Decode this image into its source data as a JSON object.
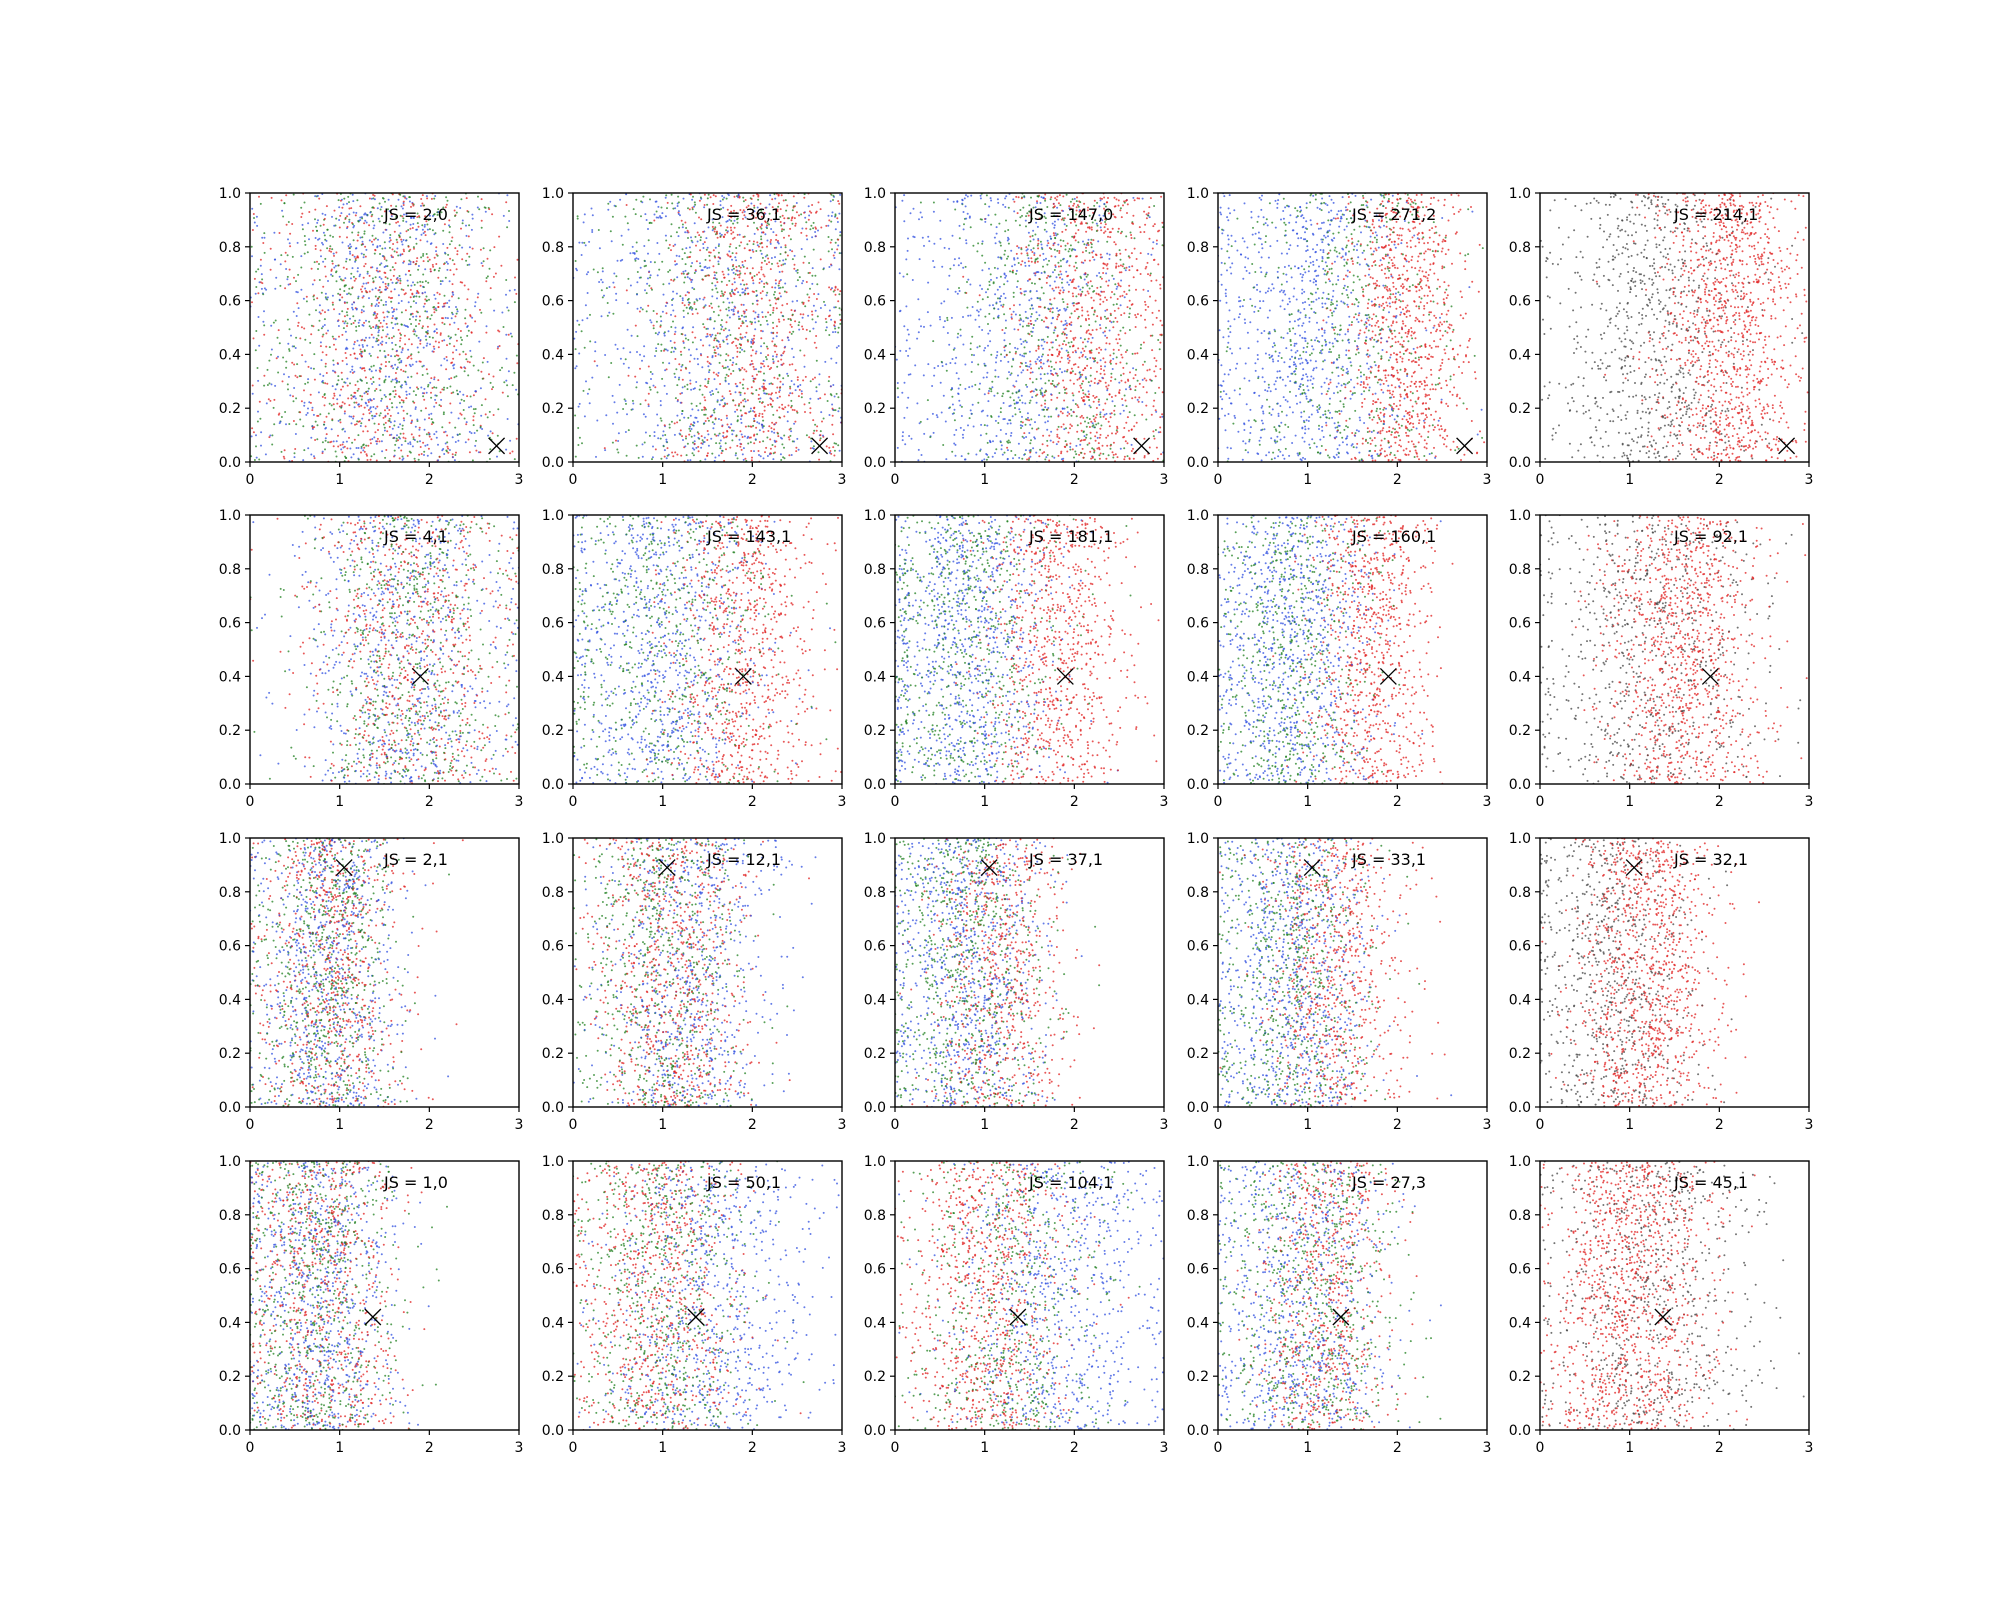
{
  "chart_data": {
    "type": "scatter",
    "layout": "grid",
    "rows": 4,
    "cols": 5,
    "xlim": [
      0,
      3
    ],
    "ylim": [
      0,
      1
    ],
    "x_ticks": [
      "0",
      "1",
      "2",
      "3"
    ],
    "y_ticks": [
      "0.0",
      "0.2",
      "0.4",
      "0.6",
      "0.8",
      "1.0"
    ],
    "grid": false,
    "legend": "none",
    "colors": {
      "blue": "#3050e0",
      "green": "#208020",
      "red": "#e02020",
      "gray": "#444444",
      "marker": "#000000"
    },
    "panels": [
      {
        "row": 0,
        "col": 0,
        "label": "JS = 2,0",
        "marker": [
          2.75,
          0.06
        ],
        "series": [
          {
            "color": "blue",
            "x_mean": 1.5,
            "x_sd": 0.7,
            "n": 700
          },
          {
            "color": "green",
            "x_mean": 1.5,
            "x_sd": 0.7,
            "n": 650
          },
          {
            "color": "red",
            "x_mean": 1.5,
            "x_sd": 0.7,
            "n": 700
          }
        ]
      },
      {
        "row": 0,
        "col": 1,
        "label": "JS = 36,1",
        "marker": [
          2.75,
          0.06
        ],
        "series": [
          {
            "color": "blue",
            "x_mean": 1.6,
            "x_sd": 0.8,
            "n": 700
          },
          {
            "color": "green",
            "x_mean": 1.7,
            "x_sd": 0.7,
            "n": 600
          },
          {
            "color": "red",
            "x_mean": 2.0,
            "x_sd": 0.5,
            "n": 750
          }
        ]
      },
      {
        "row": 0,
        "col": 2,
        "label": "JS = 147,0",
        "marker": [
          2.75,
          0.06
        ],
        "series": [
          {
            "color": "blue",
            "x_mean": 1.3,
            "x_sd": 0.7,
            "n": 700
          },
          {
            "color": "green",
            "x_mean": 1.7,
            "x_sd": 0.6,
            "n": 550
          },
          {
            "color": "red",
            "x_mean": 2.2,
            "x_sd": 0.45,
            "n": 800
          }
        ]
      },
      {
        "row": 0,
        "col": 3,
        "label": "JS = 271,2",
        "marker": [
          2.75,
          0.06
        ],
        "series": [
          {
            "color": "blue",
            "x_mean": 1.0,
            "x_sd": 0.6,
            "n": 800
          },
          {
            "color": "green",
            "x_mean": 1.4,
            "x_sd": 0.6,
            "n": 500
          },
          {
            "color": "red",
            "x_mean": 2.1,
            "x_sd": 0.35,
            "n": 900
          }
        ]
      },
      {
        "row": 0,
        "col": 4,
        "label": "JS = 214,1",
        "marker": [
          2.75,
          0.06
        ],
        "series": [
          {
            "color": "gray",
            "x_mean": 1.2,
            "x_sd": 0.55,
            "n": 800
          },
          {
            "color": "red",
            "x_mean": 2.1,
            "x_sd": 0.4,
            "n": 1100
          }
        ]
      },
      {
        "row": 1,
        "col": 0,
        "label": "JS = 4,1",
        "marker": [
          1.9,
          0.4
        ],
        "series": [
          {
            "color": "blue",
            "x_mean": 1.75,
            "x_sd": 0.6,
            "n": 700
          },
          {
            "color": "green",
            "x_mean": 1.75,
            "x_sd": 0.6,
            "n": 650
          },
          {
            "color": "red",
            "x_mean": 1.75,
            "x_sd": 0.6,
            "n": 700
          }
        ]
      },
      {
        "row": 1,
        "col": 1,
        "label": "JS = 143,1",
        "marker": [
          1.9,
          0.4
        ],
        "series": [
          {
            "color": "blue",
            "x_mean": 1.0,
            "x_sd": 0.6,
            "n": 800
          },
          {
            "color": "green",
            "x_mean": 1.0,
            "x_sd": 0.6,
            "n": 600
          },
          {
            "color": "red",
            "x_mean": 1.9,
            "x_sd": 0.4,
            "n": 800
          }
        ]
      },
      {
        "row": 1,
        "col": 2,
        "label": "JS = 181,1",
        "marker": [
          1.9,
          0.4
        ],
        "series": [
          {
            "color": "blue",
            "x_mean": 0.8,
            "x_sd": 0.5,
            "n": 850
          },
          {
            "color": "green",
            "x_mean": 0.8,
            "x_sd": 0.5,
            "n": 650
          },
          {
            "color": "red",
            "x_mean": 1.8,
            "x_sd": 0.4,
            "n": 800
          }
        ]
      },
      {
        "row": 1,
        "col": 3,
        "label": "JS = 160,1",
        "marker": [
          1.9,
          0.4
        ],
        "series": [
          {
            "color": "blue",
            "x_mean": 0.8,
            "x_sd": 0.45,
            "n": 850
          },
          {
            "color": "green",
            "x_mean": 0.8,
            "x_sd": 0.45,
            "n": 600
          },
          {
            "color": "red",
            "x_mean": 1.7,
            "x_sd": 0.35,
            "n": 800
          }
        ]
      },
      {
        "row": 1,
        "col": 4,
        "label": "JS = 92,1",
        "marker": [
          1.9,
          0.4
        ],
        "series": [
          {
            "color": "gray",
            "x_mean": 1.2,
            "x_sd": 0.65,
            "n": 700
          },
          {
            "color": "red",
            "x_mean": 1.6,
            "x_sd": 0.45,
            "n": 1000
          }
        ]
      },
      {
        "row": 2,
        "col": 0,
        "label": "JS = 2,1",
        "marker": [
          1.05,
          0.89
        ],
        "series": [
          {
            "color": "blue",
            "x_mean": 0.9,
            "x_sd": 0.4,
            "n": 750
          },
          {
            "color": "green",
            "x_mean": 0.9,
            "x_sd": 0.4,
            "n": 700
          },
          {
            "color": "red",
            "x_mean": 0.9,
            "x_sd": 0.4,
            "n": 700
          }
        ]
      },
      {
        "row": 2,
        "col": 1,
        "label": "JS = 12,1",
        "marker": [
          1.05,
          0.89
        ],
        "series": [
          {
            "color": "blue",
            "x_mean": 1.3,
            "x_sd": 0.5,
            "n": 700
          },
          {
            "color": "green",
            "x_mean": 1.0,
            "x_sd": 0.45,
            "n": 650
          },
          {
            "color": "red",
            "x_mean": 1.1,
            "x_sd": 0.45,
            "n": 750
          }
        ]
      },
      {
        "row": 2,
        "col": 2,
        "label": "JS = 37,1",
        "marker": [
          1.05,
          0.89
        ],
        "series": [
          {
            "color": "blue",
            "x_mean": 0.8,
            "x_sd": 0.45,
            "n": 800
          },
          {
            "color": "green",
            "x_mean": 0.8,
            "x_sd": 0.45,
            "n": 700
          },
          {
            "color": "red",
            "x_mean": 1.2,
            "x_sd": 0.4,
            "n": 650
          }
        ]
      },
      {
        "row": 2,
        "col": 3,
        "label": "JS = 33,1",
        "marker": [
          1.05,
          0.89
        ],
        "series": [
          {
            "color": "blue",
            "x_mean": 0.8,
            "x_sd": 0.45,
            "n": 800
          },
          {
            "color": "green",
            "x_mean": 0.8,
            "x_sd": 0.45,
            "n": 650
          },
          {
            "color": "red",
            "x_mean": 1.3,
            "x_sd": 0.4,
            "n": 700
          }
        ]
      },
      {
        "row": 2,
        "col": 4,
        "label": "JS = 32,1",
        "marker": [
          1.05,
          0.89
        ],
        "series": [
          {
            "color": "gray",
            "x_mean": 0.8,
            "x_sd": 0.45,
            "n": 700
          },
          {
            "color": "red",
            "x_mean": 1.2,
            "x_sd": 0.4,
            "n": 1000
          }
        ]
      },
      {
        "row": 3,
        "col": 0,
        "label": "JS = 1,0",
        "marker": [
          1.37,
          0.42
        ],
        "series": [
          {
            "color": "blue",
            "x_mean": 0.75,
            "x_sd": 0.45,
            "n": 750
          },
          {
            "color": "green",
            "x_mean": 0.75,
            "x_sd": 0.45,
            "n": 700
          },
          {
            "color": "red",
            "x_mean": 0.75,
            "x_sd": 0.45,
            "n": 700
          }
        ]
      },
      {
        "row": 3,
        "col": 1,
        "label": "JS = 50,1",
        "marker": [
          1.37,
          0.42
        ],
        "series": [
          {
            "color": "blue",
            "x_mean": 1.5,
            "x_sd": 0.6,
            "n": 750
          },
          {
            "color": "green",
            "x_mean": 1.0,
            "x_sd": 0.5,
            "n": 650
          },
          {
            "color": "red",
            "x_mean": 0.9,
            "x_sd": 0.45,
            "n": 750
          }
        ]
      },
      {
        "row": 3,
        "col": 2,
        "label": "JS = 104,1",
        "marker": [
          1.37,
          0.42
        ],
        "series": [
          {
            "color": "blue",
            "x_mean": 1.8,
            "x_sd": 0.6,
            "n": 750
          },
          {
            "color": "green",
            "x_mean": 1.3,
            "x_sd": 0.55,
            "n": 600
          },
          {
            "color": "red",
            "x_mean": 1.0,
            "x_sd": 0.45,
            "n": 800
          }
        ]
      },
      {
        "row": 3,
        "col": 3,
        "label": "JS = 27,3",
        "marker": [
          1.37,
          0.42
        ],
        "series": [
          {
            "color": "blue",
            "x_mean": 0.9,
            "x_sd": 0.5,
            "n": 750
          },
          {
            "color": "green",
            "x_mean": 1.0,
            "x_sd": 0.5,
            "n": 700
          },
          {
            "color": "red",
            "x_mean": 1.2,
            "x_sd": 0.35,
            "n": 650
          }
        ]
      },
      {
        "row": 3,
        "col": 4,
        "label": "JS = 45,1",
        "marker": [
          1.37,
          0.42
        ],
        "series": [
          {
            "color": "gray",
            "x_mean": 1.2,
            "x_sd": 0.6,
            "n": 700
          },
          {
            "color": "red",
            "x_mean": 1.0,
            "x_sd": 0.45,
            "n": 1100
          }
        ]
      }
    ]
  }
}
